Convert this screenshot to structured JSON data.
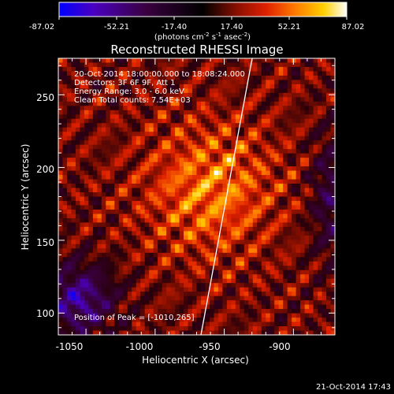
{
  "chart_data": {
    "type": "heatmap",
    "title": "Reconstructed RHESSI Image",
    "colorbar": {
      "ticks": [
        "-87.02",
        "-52.21",
        "-17.40",
        "17.40",
        "52.21",
        "87.02"
      ],
      "range": [
        -87.02,
        87.02
      ],
      "unit_main": "(photons cm",
      "unit_exp1": "-2",
      "unit_mid": " s",
      "unit_exp2": "-1",
      "unit_end": " asec",
      "unit_exp3": "-2",
      "unit_close": ")",
      "colors": [
        "#0000ff",
        "#5a009a",
        "#2a002a",
        "#000000",
        "#7a1a00",
        "#e01a00",
        "#ff8000",
        "#ffd000",
        "#ffffff"
      ]
    },
    "xlabel": "Heliocentric X (arcsec)",
    "ylabel": "Heliocentric Y (arcsec)",
    "x_ticks": [
      "-1050",
      "-1000",
      "-950",
      "-900"
    ],
    "y_ticks": [
      "100",
      "150",
      "200",
      "250"
    ],
    "xlim": [
      -1070,
      -870
    ],
    "ylim": [
      85,
      275
    ],
    "annotations": [
      "20-Oct-2014 18:00:00.000 to 18:08:24.000",
      "Detectors: 3F 6F 9F, Att 1",
      "Energy Range: 3.0 - 6.0 keV",
      "Clean     Total counts: 7.54E+03"
    ],
    "peak_label": "Position of Peak = [-1010,265]",
    "peak": [
      -1010,
      265
    ]
  },
  "footer_timestamp": "21-Oct-2014 17:43"
}
